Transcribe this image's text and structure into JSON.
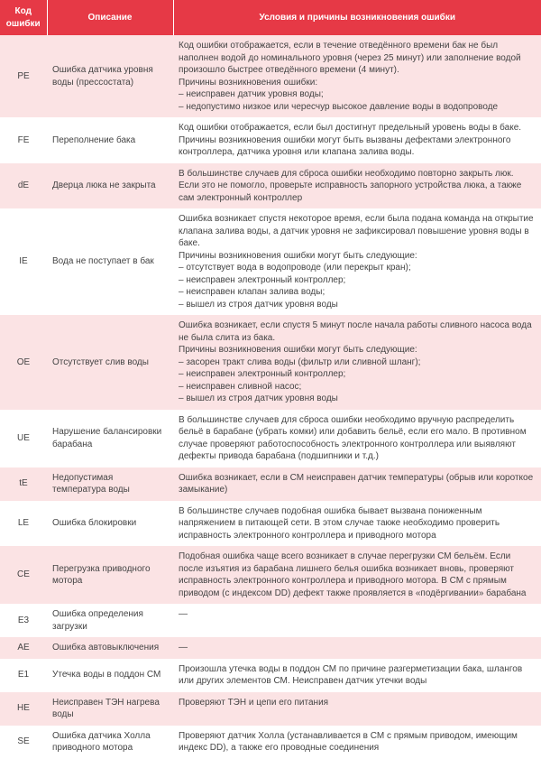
{
  "headers": {
    "code": "Код ошибки",
    "desc": "Описание",
    "cond": "Условия и причины возникновения ошибки"
  },
  "colors": {
    "header_bg": "#e63946",
    "header_fg": "#ffffff",
    "stripe_bg": "#fbe3e4",
    "plain_bg": "#ffffff",
    "text": "#444444"
  },
  "rows": [
    {
      "code": "PE",
      "desc": "Ошибка датчика уровня воды (прессостата)",
      "cond": "Код ошибки отображается, если в течение отведённого времени бак не был наполнен водой до номинального уровня (через 25 минут) или заполнение водой произошло быстрее отведённого времени (4 минут).\nПричины возникновения ошибки:\n– неисправен датчик уровня воды;\n– недопустимо низкое или чересчур высокое давление воды в водопроводе"
    },
    {
      "code": "FE",
      "desc": "Переполнение бака",
      "cond": "Код ошибки отображается, если был достигнут предельный уровень воды в баке. Причины возникновения ошибки могут быть вызваны дефектами электронного контроллера, датчика уровня или клапана залива воды."
    },
    {
      "code": "dE",
      "desc": "Дверца люка не закрыта",
      "cond": "В большинстве случаев для сброса ошибки необходимо повторно закрыть люк. Если это не помогло, проверьте исправность запорного устройства люка, а также сам электронный контроллер"
    },
    {
      "code": "IE",
      "desc": "Вода не поступает в бак",
      "cond": "Ошибка возникает спустя некоторое время, если была подана команда на открытие клапана залива воды, а датчик уровня не зафиксировал повышение уровня воды в баке.\nПричины возникновения ошибки могут быть следующие:\n– отсутствует вода в водопроводе (или перекрыт кран);\n– неисправен электронный контроллер;\n– неисправен клапан залива воды;\n– вышел из строя датчик уровня воды"
    },
    {
      "code": "OE",
      "desc": "Отсутствует слив воды",
      "cond": "Ошибка возникает, если спустя 5 минут после начала работы сливного насоса вода не была слита из бака.\nПричины возникновения ошибки могут быть следующие:\n– засорен тракт слива воды (фильтр или сливной шланг);\n– неисправен электронный контроллер;\n– неисправен сливной насос;\n– вышел из строя датчик уровня воды"
    },
    {
      "code": "UE",
      "desc": "Нарушение балансировки барабана",
      "cond": "В большинстве случаев для сброса ошибки необходимо вручную распределить бельё в барабане (убрать комки) или добавить бельё, если его мало. В противном случае проверяют работоспособность электронного контроллера или выявляют дефекты привода барабана (подшипники и т.д.)"
    },
    {
      "code": "tE",
      "desc": "Недопустимая температура воды",
      "cond": "Ошибка возникает, если в СМ неисправен датчик температуры (обрыв или короткое замыкание)"
    },
    {
      "code": "LE",
      "desc": "Ошибка блокировки",
      "cond": "В большинстве случаев подобная ошибка бывает вызвана пониженным напряжением в питающей сети. В этом случае также необходимо проверить исправность электронного контроллера и приводного мотора"
    },
    {
      "code": "CE",
      "desc": "Перегрузка приводного мотора",
      "cond": "Подобная ошибка чаще всего возникает в случае перегрузки СМ бельём. Если после изъятия из барабана лишнего белья ошибка возникает вновь, проверяют исправность электронного контроллера и приводного мотора. В СМ с прямым приводом (с индексом DD) дефект также проявляется в «подёргивании» барабана"
    },
    {
      "code": "E3",
      "desc": "Ошибка определения загрузки",
      "cond": "—"
    },
    {
      "code": "AE",
      "desc": "Ошибка автовыключения",
      "cond": "—"
    },
    {
      "code": "E1",
      "desc": "Утечка воды в поддон СМ",
      "cond": "Произошла утечка воды в поддон СМ по причине разгерметизации бака, шлангов или других элементов СМ. Неисправен датчик утечки воды"
    },
    {
      "code": "HE",
      "desc": "Неисправен ТЭН нагрева воды",
      "cond": "Проверяют ТЭН и цепи его питания"
    },
    {
      "code": "SE",
      "desc": "Ошибка датчика Холла приводного мотора",
      "cond": "Проверяют датчик Холла (устанавливается в СМ с прямым приводом, имеющим индекс DD), а также его проводные соединения"
    }
  ]
}
